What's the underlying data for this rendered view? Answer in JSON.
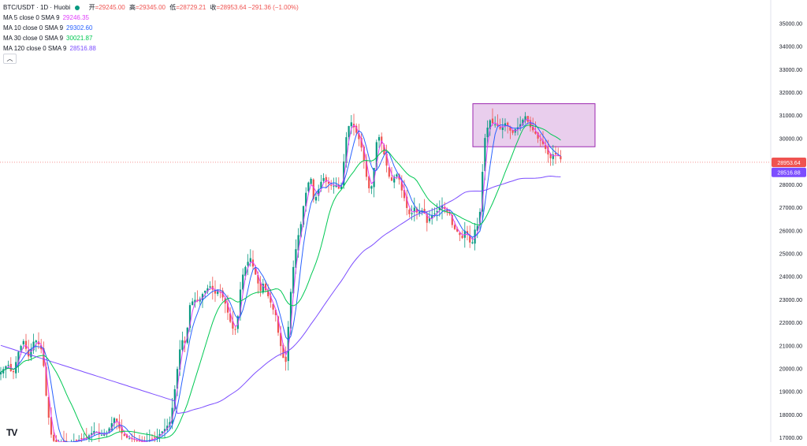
{
  "header": {
    "symbol": "BTC/USDT · 1D · Huobi",
    "ohlc": [
      {
        "label": "开",
        "value": "=29245.00"
      },
      {
        "label": "高",
        "value": "=29345.00"
      },
      {
        "label": "低",
        "value": "=28729.21"
      },
      {
        "label": "收",
        "value": "=28953.64  −291.36 (−1.00%)"
      }
    ],
    "indicators": [
      {
        "label": "MA 5 close 0 SMA 9",
        "value": "29246.35",
        "color": "#e040fb"
      },
      {
        "label": "MA 10 close 0 SMA 9",
        "value": "29302.60",
        "color": "#2962ff"
      },
      {
        "label": "MA 30 close 0 SMA 9",
        "value": "30021.87",
        "color": "#00c853"
      },
      {
        "label": "MA 120 close 0 SMA 9",
        "value": "28516.88",
        "color": "#7c4dff"
      }
    ],
    "collapse_icon": "chevron-up-icon"
  },
  "logo_text": "TV",
  "chart_data": {
    "type": "candlestick",
    "symbol": "BTC/USDT",
    "interval": "1D",
    "exchange": "Huobi",
    "ylim": [
      16800,
      35800
    ],
    "y_ticks": [
      "35000.00",
      "34000.00",
      "33000.00",
      "32000.00",
      "31000.00",
      "30000.00",
      "29000.00",
      "28000.00",
      "27000.00",
      "26000.00",
      "25000.00",
      "24000.00",
      "23000.00",
      "22000.00",
      "21000.00",
      "20000.00",
      "19000.00",
      "18000.00",
      "17000.00"
    ],
    "y_tick_values": [
      35000,
      34000,
      33000,
      32000,
      31000,
      30000,
      29000,
      28000,
      27000,
      26000,
      25000,
      24000,
      23000,
      22000,
      21000,
      20000,
      19000,
      18000,
      17000
    ],
    "last_price": {
      "value": 28953.64,
      "label": "28953.64",
      "color": "#ef5350"
    },
    "ma120_last": {
      "value": 28516.88,
      "label": "28516.88",
      "color": "#7c4dff"
    },
    "colors": {
      "up": "#089981",
      "down": "#ef5350"
    },
    "price_path": [
      [
        0,
        19800
      ],
      [
        10,
        20200
      ],
      [
        16,
        19700
      ],
      [
        24,
        20800
      ],
      [
        30,
        21200
      ],
      [
        36,
        20500
      ],
      [
        44,
        21300
      ],
      [
        50,
        21000
      ],
      [
        54,
        20700
      ],
      [
        58,
        19000
      ],
      [
        62,
        17800
      ],
      [
        66,
        16900
      ],
      [
        70,
        16800
      ],
      [
        80,
        16800
      ],
      [
        90,
        16800
      ],
      [
        100,
        16900
      ],
      [
        110,
        17000
      ],
      [
        120,
        17300
      ],
      [
        128,
        17100
      ],
      [
        136,
        17200
      ],
      [
        140,
        17500
      ],
      [
        146,
        17900
      ],
      [
        150,
        17500
      ],
      [
        154,
        17200
      ],
      [
        160,
        17000
      ],
      [
        170,
        16900
      ],
      [
        180,
        16800
      ],
      [
        190,
        16900
      ],
      [
        198,
        17000
      ],
      [
        204,
        17200
      ],
      [
        210,
        17400
      ],
      [
        216,
        17700
      ],
      [
        220,
        18600
      ],
      [
        224,
        19700
      ],
      [
        228,
        20800
      ],
      [
        232,
        21300
      ],
      [
        236,
        21000
      ],
      [
        240,
        22700
      ],
      [
        246,
        23000
      ],
      [
        252,
        22900
      ],
      [
        258,
        23300
      ],
      [
        264,
        23500
      ],
      [
        268,
        23600
      ],
      [
        272,
        23200
      ],
      [
        276,
        23400
      ],
      [
        280,
        23300
      ],
      [
        286,
        22800
      ],
      [
        290,
        22300
      ],
      [
        294,
        21800
      ],
      [
        298,
        21600
      ],
      [
        302,
        22300
      ],
      [
        306,
        23800
      ],
      [
        310,
        24300
      ],
      [
        314,
        24600
      ],
      [
        318,
        24800
      ],
      [
        322,
        24300
      ],
      [
        326,
        23900
      ],
      [
        330,
        23300
      ],
      [
        334,
        23700
      ],
      [
        338,
        23300
      ],
      [
        342,
        23000
      ],
      [
        346,
        22600
      ],
      [
        350,
        22300
      ],
      [
        354,
        21300
      ],
      [
        358,
        20700
      ],
      [
        362,
        20000
      ],
      [
        366,
        21900
      ],
      [
        370,
        23800
      ],
      [
        374,
        24900
      ],
      [
        378,
        25700
      ],
      [
        382,
        26300
      ],
      [
        386,
        27300
      ],
      [
        390,
        27900
      ],
      [
        394,
        28400
      ],
      [
        398,
        27300
      ],
      [
        402,
        27500
      ],
      [
        406,
        28000
      ],
      [
        410,
        28300
      ],
      [
        414,
        28100
      ],
      [
        418,
        28000
      ],
      [
        422,
        27900
      ],
      [
        426,
        28000
      ],
      [
        430,
        27800
      ],
      [
        434,
        28000
      ],
      [
        438,
        29800
      ],
      [
        442,
        30500
      ],
      [
        446,
        30700
      ],
      [
        450,
        30400
      ],
      [
        454,
        30100
      ],
      [
        458,
        29700
      ],
      [
        462,
        29000
      ],
      [
        466,
        28100
      ],
      [
        470,
        27600
      ],
      [
        474,
        28500
      ],
      [
        478,
        29900
      ],
      [
        482,
        30100
      ],
      [
        486,
        29500
      ],
      [
        490,
        28900
      ],
      [
        494,
        28300
      ],
      [
        498,
        28100
      ],
      [
        502,
        28500
      ],
      [
        506,
        28300
      ],
      [
        510,
        27700
      ],
      [
        514,
        27300
      ],
      [
        518,
        26700
      ],
      [
        522,
        26700
      ],
      [
        526,
        27000
      ],
      [
        530,
        26700
      ],
      [
        534,
        26900
      ],
      [
        538,
        26800
      ],
      [
        542,
        26300
      ],
      [
        546,
        26600
      ],
      [
        550,
        26700
      ],
      [
        554,
        26800
      ],
      [
        558,
        27000
      ],
      [
        562,
        27100
      ],
      [
        566,
        26800
      ],
      [
        570,
        26800
      ],
      [
        574,
        26200
      ],
      [
        578,
        26000
      ],
      [
        582,
        25900
      ],
      [
        586,
        25600
      ],
      [
        590,
        26000
      ],
      [
        594,
        25800
      ],
      [
        598,
        25200
      ],
      [
        602,
        26000
      ],
      [
        606,
        26200
      ],
      [
        610,
        27000
      ],
      [
        614,
        29800
      ],
      [
        618,
        30400
      ],
      [
        622,
        30800
      ],
      [
        626,
        30600
      ],
      [
        630,
        30600
      ],
      [
        634,
        30400
      ],
      [
        638,
        30500
      ],
      [
        642,
        30700
      ],
      [
        646,
        30400
      ],
      [
        650,
        30200
      ],
      [
        654,
        30400
      ],
      [
        658,
        30500
      ],
      [
        662,
        30700
      ],
      [
        666,
        31000
      ],
      [
        670,
        30700
      ],
      [
        674,
        30400
      ],
      [
        678,
        30300
      ],
      [
        682,
        30000
      ],
      [
        686,
        29900
      ],
      [
        690,
        29700
      ],
      [
        694,
        29400
      ],
      [
        698,
        29100
      ],
      [
        702,
        29300
      ],
      [
        706,
        29300
      ],
      [
        710,
        29200
      ],
      [
        713,
        28954
      ]
    ],
    "ma_series": [
      {
        "name": "MA 5",
        "color": "#e040fb",
        "period": 5
      },
      {
        "name": "MA 10",
        "color": "#2962ff",
        "period": 10
      },
      {
        "name": "MA 30",
        "color": "#00c853",
        "period": 30
      },
      {
        "name": "MA 120",
        "color": "#7c4dff",
        "period": 120
      }
    ],
    "highlight_box": {
      "price_top": 31500,
      "price_bottom": 29630,
      "fill": "#e1bee7",
      "stroke": "#9c27b0"
    }
  }
}
